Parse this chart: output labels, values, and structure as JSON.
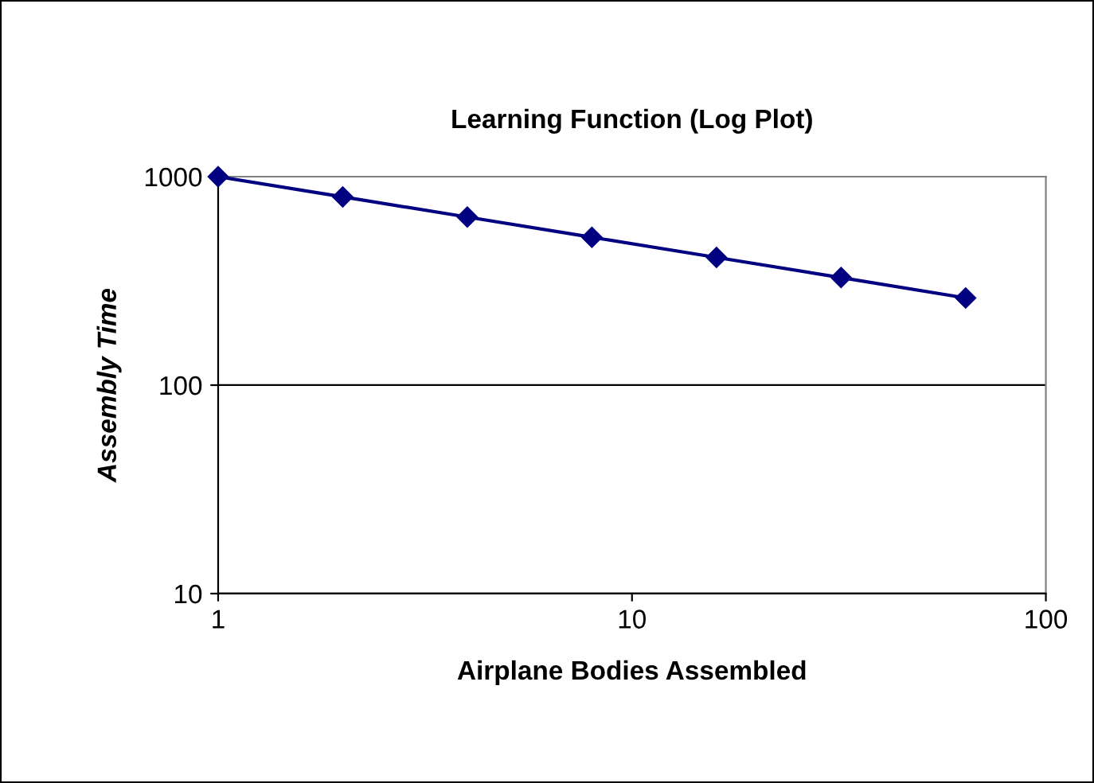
{
  "chart_data": {
    "type": "line",
    "title": "Learning Function (Log Plot)",
    "xlabel": "Airplane Bodies Assembled",
    "ylabel": "Assembly Time",
    "x": [
      1,
      2,
      4,
      8,
      16,
      32,
      64
    ],
    "series": [
      {
        "color": "#000080",
        "values": [
          1000,
          800,
          640,
          512,
          410,
          328,
          262
        ]
      }
    ],
    "log": "xy",
    "xlim": [
      1,
      100
    ],
    "ylim": [
      10,
      1000
    ],
    "xticks": [
      1,
      10,
      100
    ],
    "yticks": [
      10,
      100,
      1000
    ],
    "grid": "y",
    "marker": "diamond",
    "line_style": "solid"
  }
}
